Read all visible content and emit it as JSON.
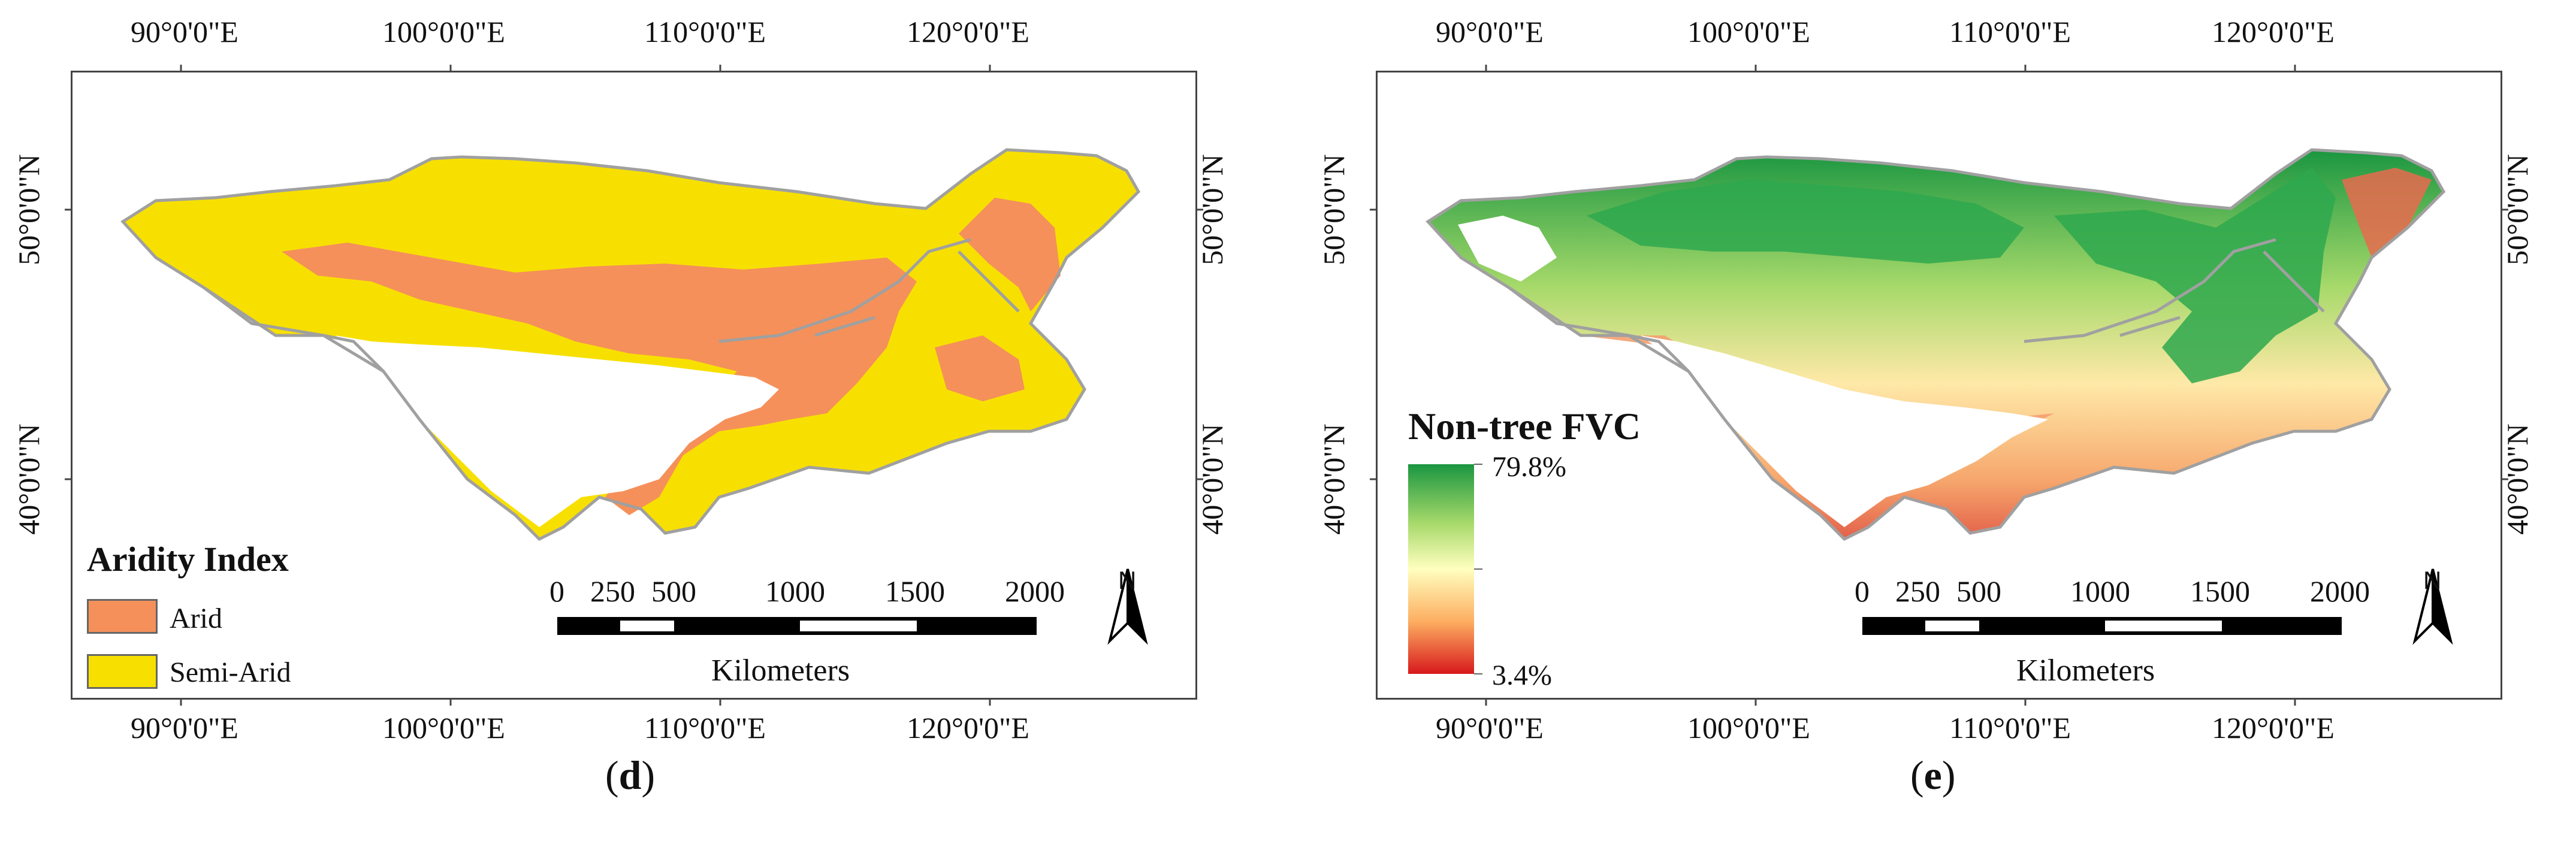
{
  "panels": [
    {
      "id": "d",
      "caption_open": "(",
      "caption_letter": "d",
      "caption_close": ")",
      "lon_labels": [
        "90°0'0\"E",
        "100°0'0\"E",
        "110°0'0\"E",
        "120°0'0\"E"
      ],
      "lat_labels": [
        "50°0'0\"N",
        "40°0'0\"N"
      ],
      "legend": {
        "title": "Aridity Index",
        "items": [
          {
            "label": "Arid",
            "color": "#f5905a"
          },
          {
            "label": "Semi-Arid",
            "color": "#f7e000"
          }
        ]
      },
      "scale_bar": {
        "ticks": [
          "0",
          "250",
          "500",
          "1000",
          "1500",
          "2000"
        ],
        "unit": "Kilometers"
      },
      "north": "N"
    },
    {
      "id": "e",
      "caption_open": "(",
      "caption_letter": "e",
      "caption_close": ")",
      "lon_labels": [
        "90°0'0\"E",
        "100°0'0\"E",
        "110°0'0\"E",
        "120°0'0\"E"
      ],
      "lat_labels": [
        "50°0'0\"N",
        "40°0'0\"N"
      ],
      "legend": {
        "title": "Non-tree FVC",
        "max_label": "79.8%",
        "min_label": "3.4%",
        "max_value": 79.8,
        "min_value": 3.4,
        "colors": [
          "#1a9641",
          "#a6d96a",
          "#ffffbf",
          "#fdae61",
          "#d7191c"
        ]
      },
      "scale_bar": {
        "ticks": [
          "0",
          "250",
          "500",
          "1000",
          "1500",
          "2000"
        ],
        "unit": "Kilometers"
      },
      "north": "N"
    }
  ]
}
